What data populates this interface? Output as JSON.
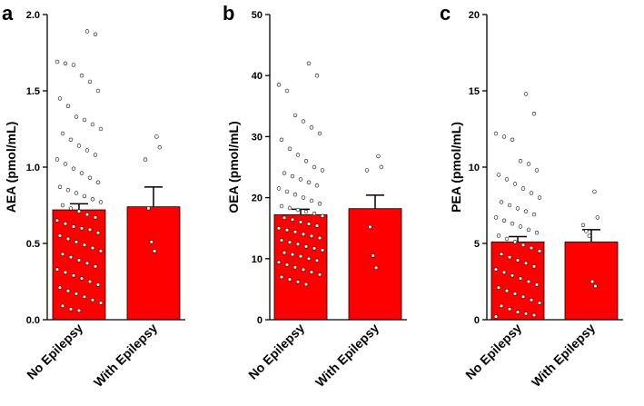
{
  "colors": {
    "bar": "#ff0000",
    "axis": "#000000",
    "point_fill": "#ffffff",
    "point_stroke": "#000000"
  },
  "chart_data": [
    {
      "type": "bar",
      "panel_label": "a",
      "ylabel": "AEA (pmol/mL)",
      "ylim": [
        0,
        2.0
      ],
      "yticks": [
        "0.0",
        "0.5",
        "1.0",
        "1.5",
        "2.0"
      ],
      "categories": [
        "No Epilepsy",
        "With Epilepsy"
      ],
      "values": [
        0.72,
        0.74
      ],
      "sem": [
        0.04,
        0.13
      ],
      "points": [
        [
          1.89,
          1.87,
          1.69,
          1.68,
          1.67,
          1.6,
          1.56,
          1.5,
          1.45,
          1.4,
          1.33,
          1.31,
          1.28,
          1.25,
          1.22,
          1.18,
          1.14,
          1.11,
          1.08,
          1.05,
          1.02,
          0.99,
          0.96,
          0.93,
          0.9,
          0.87,
          0.85,
          0.83,
          0.81,
          0.79,
          0.77,
          0.75,
          0.73,
          0.71,
          0.69,
          0.67,
          0.65,
          0.63,
          0.61,
          0.6,
          0.59,
          0.57,
          0.55,
          0.53,
          0.51,
          0.49,
          0.47,
          0.45,
          0.43,
          0.41,
          0.39,
          0.37,
          0.35,
          0.33,
          0.31,
          0.29,
          0.27,
          0.25,
          0.23,
          0.21,
          0.19,
          0.17,
          0.15,
          0.13,
          0.11,
          0.09,
          0.07,
          0.06
        ],
        [
          1.2,
          1.13,
          1.05,
          0.73,
          0.51,
          0.45
        ]
      ]
    },
    {
      "type": "bar",
      "panel_label": "b",
      "ylabel": "OEA (pmol/mL)",
      "ylim": [
        0,
        50
      ],
      "yticks": [
        "0",
        "10",
        "20",
        "30",
        "40",
        "50"
      ],
      "categories": [
        "No Epilepsy",
        "With Epilepsy"
      ],
      "values": [
        17.2,
        18.2
      ],
      "sem": [
        0.9,
        2.2
      ],
      "points": [
        [
          42,
          40,
          38.5,
          37.5,
          33.5,
          32.5,
          31.5,
          30.5,
          29.5,
          28,
          27,
          26,
          25,
          24.5,
          24,
          23.5,
          23,
          22.5,
          22,
          21.5,
          21,
          20.5,
          20,
          19.5,
          19,
          18.6,
          18.3,
          18,
          17.7,
          17.4,
          17,
          16.7,
          16.4,
          16,
          15.7,
          15.4,
          15,
          14.7,
          14.4,
          14,
          13.7,
          13.4,
          13,
          12.7,
          12.4,
          12,
          11.7,
          11.4,
          11,
          10.7,
          10.4,
          10,
          9.7,
          9.4,
          9,
          8.6,
          8.2,
          7.8,
          7.4,
          7,
          6.6,
          6.2,
          5.8
        ],
        [
          26.8,
          25,
          24.5,
          15.2,
          10.5,
          8.5
        ]
      ]
    },
    {
      "type": "bar",
      "panel_label": "c",
      "ylabel": "PEA (pmol/mL)",
      "ylim": [
        0,
        20
      ],
      "yticks": [
        "0",
        "5",
        "10",
        "15",
        "20"
      ],
      "categories": [
        "No Epilepsy",
        "With Epilepsy"
      ],
      "values": [
        5.1,
        5.1
      ],
      "sem": [
        0.35,
        0.8
      ],
      "points": [
        [
          14.8,
          13.5,
          12.2,
          12,
          11.8,
          10.4,
          10.2,
          9.8,
          9.5,
          9.2,
          8.9,
          8.6,
          8.3,
          8,
          7.7,
          7.5,
          7.3,
          7.1,
          6.9,
          6.7,
          6.5,
          6.3,
          6.1,
          5.9,
          5.7,
          5.5,
          5.3,
          5.1,
          4.9,
          4.7,
          4.5,
          4.3,
          4.1,
          3.9,
          3.7,
          3.5,
          3.3,
          3.1,
          2.9,
          2.7,
          2.5,
          2.3,
          2.1,
          1.9,
          1.7,
          1.5,
          1.3,
          1.1,
          0.9,
          0.7,
          0.5,
          0.4,
          0.3,
          0.2
        ],
        [
          8.4,
          6.7,
          6.2,
          5.8,
          5.5,
          2.5,
          2.2
        ]
      ]
    }
  ]
}
